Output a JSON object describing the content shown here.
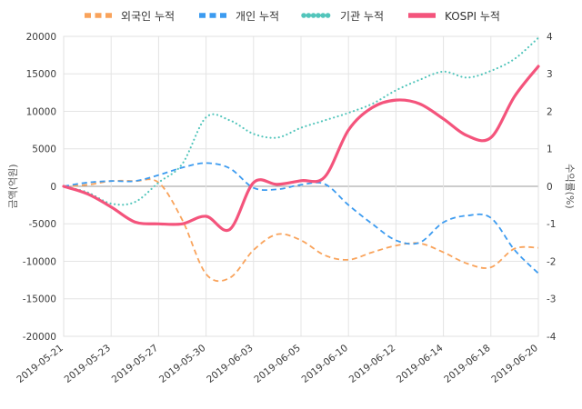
{
  "chart": {
    "ylabel_left": "금액(억원)",
    "ylabel_right": "수익률(%)"
  },
  "theme": {
    "background": "#ffffff",
    "grid": "#e4e4e4",
    "zero_line": "#999999",
    "tick_text": "#3c3c3c",
    "border": "#e0e0e0"
  },
  "chart_data": {
    "type": "line",
    "x": [
      "2019-05-21",
      "2019-05-22",
      "2019-05-23",
      "2019-05-24",
      "2019-05-27",
      "2019-05-28",
      "2019-05-30",
      "2019-05-31",
      "2019-06-03",
      "2019-06-04",
      "2019-06-05",
      "2019-06-07",
      "2019-06-10",
      "2019-06-11",
      "2019-06-12",
      "2019-06-13",
      "2019-06-14",
      "2019-06-17",
      "2019-06-18",
      "2019-06-19",
      "2019-06-20"
    ],
    "x_tick_labels": [
      "2019-05-21",
      "2019-05-23",
      "2019-05-27",
      "2019-05-30",
      "2019-06-03",
      "2019-06-05",
      "2019-06-10",
      "2019-06-12",
      "2019-06-14",
      "2019-06-18",
      "2019-06-20"
    ],
    "y_left": {
      "min": -20000,
      "max": 20000,
      "step": 5000
    },
    "y_right": {
      "min": -4,
      "max": 4,
      "step": 1
    },
    "grid": true,
    "legend_position": "top",
    "series": [
      {
        "id": "foreigner",
        "name": "외국인 누적",
        "axis": "left",
        "color": "#f9a35b",
        "style": "dashed",
        "values": [
          0,
          200,
          700,
          700,
          500,
          -4500,
          -11700,
          -12200,
          -8500,
          -6400,
          -7200,
          -9200,
          -9800,
          -8800,
          -7900,
          -7600,
          -8800,
          -10300,
          -10800,
          -8300,
          -8200
        ]
      },
      {
        "id": "individual",
        "name": "개인 누적",
        "axis": "left",
        "color": "#3c9bf0",
        "style": "dashed",
        "values": [
          0,
          500,
          700,
          700,
          1500,
          2500,
          3100,
          2400,
          -200,
          -400,
          200,
          300,
          -2500,
          -5000,
          -7200,
          -7500,
          -4800,
          -3900,
          -4200,
          -8500,
          -11600
        ]
      },
      {
        "id": "institution",
        "name": "기관 누적",
        "axis": "left",
        "color": "#52c5bb",
        "style": "dotted",
        "values": [
          0,
          -800,
          -2300,
          -2100,
          500,
          3000,
          9200,
          8800,
          7000,
          6500,
          7800,
          8800,
          9800,
          11000,
          12800,
          14200,
          15300,
          14500,
          15400,
          17000,
          19800
        ]
      },
      {
        "id": "kospi",
        "name": "KOSPI 누적",
        "axis": "right",
        "color": "#f4547c",
        "style": "solid",
        "values": [
          0,
          -0.2,
          -0.55,
          -0.95,
          -1.0,
          -1.0,
          -0.8,
          -1.15,
          0.1,
          0.05,
          0.15,
          0.25,
          1.5,
          2.1,
          2.3,
          2.2,
          1.8,
          1.35,
          1.3,
          2.4,
          3.2
        ]
      }
    ]
  }
}
